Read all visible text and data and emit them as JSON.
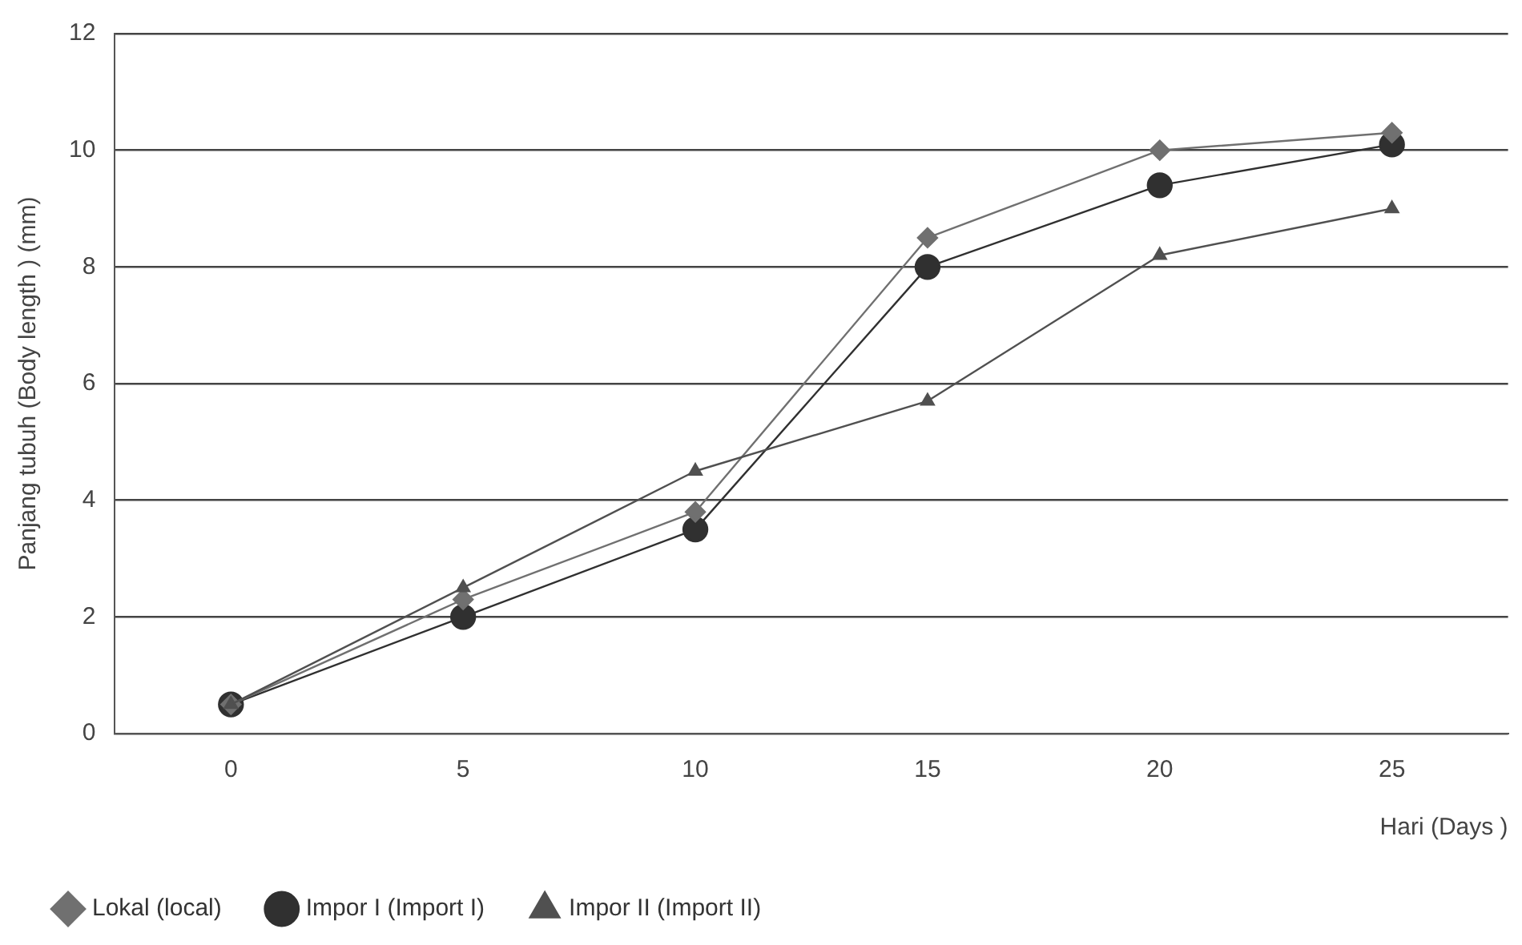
{
  "chart_data": {
    "type": "line",
    "xlabel": "Hari (Days )",
    "ylabel": "Panjang tubuh (Body length ) (mm)",
    "categories": [
      "0",
      "5",
      "10",
      "15",
      "20",
      "25"
    ],
    "series": [
      {
        "name": "Lokal (local)",
        "color": "#707070",
        "marker": "diamond",
        "values": [
          0.5,
          2.3,
          3.8,
          8.5,
          10.0,
          10.3
        ]
      },
      {
        "name": "Impor I (Import I)",
        "color": "#303030",
        "marker": "circle",
        "values": [
          0.5,
          2.0,
          3.5,
          8.0,
          9.4,
          10.1
        ]
      },
      {
        "name": "Impor II (Import II)",
        "color": "#505050",
        "marker": "triangle",
        "values": [
          0.5,
          2.5,
          4.5,
          5.7,
          8.2,
          9.0
        ]
      }
    ],
    "ylim": [
      0,
      12
    ],
    "yticks": [
      0,
      2,
      4,
      6,
      8,
      10,
      12
    ],
    "grid": "y",
    "legend": "bottom",
    "line_style": "solid"
  }
}
